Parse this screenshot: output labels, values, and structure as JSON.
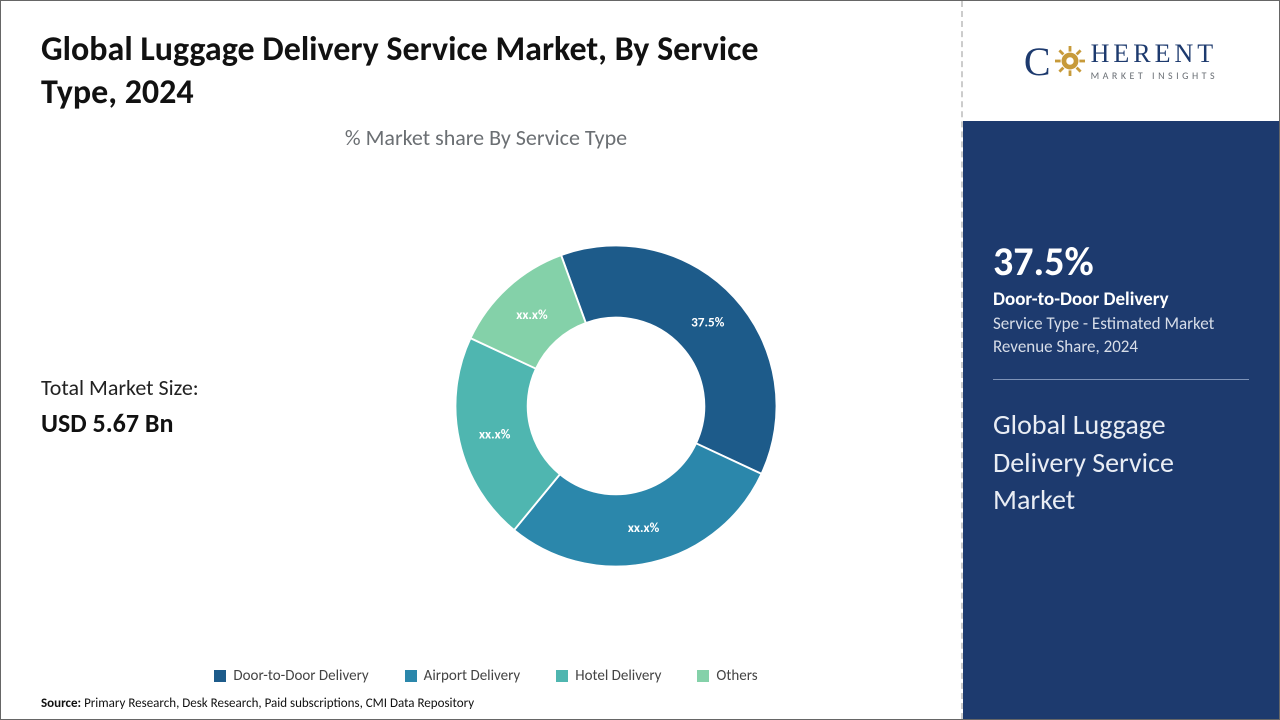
{
  "title": "Global Luggage Delivery Service Market, By Service Type, 2024",
  "subtitle": "% Market share By Service Type",
  "total_market_size": {
    "label": "Total Market Size:",
    "value": "USD 5.67 Bn"
  },
  "chart": {
    "type": "donut",
    "background_color": "#ffffff",
    "inner_radius_ratio": 0.55,
    "outer_radius": 170,
    "stroke_color": "#ffffff",
    "stroke_width": 2,
    "label_fontsize": 14,
    "label_color": "#ffffff",
    "series": [
      {
        "name": "Door-to-Door Delivery",
        "value": 37.5,
        "label": "37.5%",
        "color": "#1d5b8a"
      },
      {
        "name": "Airport Delivery",
        "value": 29.0,
        "label": "xx.x%",
        "color": "#2b87ab"
      },
      {
        "name": "Hotel Delivery",
        "value": 21.0,
        "label": "xx.x%",
        "color": "#4fb6b0"
      },
      {
        "name": "Others",
        "value": 12.5,
        "label": "xx.x%",
        "color": "#84d1a9"
      }
    ],
    "start_angle_deg": -20
  },
  "legend": [
    {
      "label": "Door-to-Door Delivery",
      "color": "#1d5b8a"
    },
    {
      "label": "Airport Delivery",
      "color": "#2b87ab"
    },
    {
      "label": "Hotel Delivery",
      "color": "#4fb6b0"
    },
    {
      "label": "Others",
      "color": "#84d1a9"
    }
  ],
  "source": {
    "prefix": "Source:",
    "text": " Primary Research, Desk Research, Paid subscriptions, CMI Data Repository"
  },
  "logo": {
    "line1": "C   HERENT",
    "line2": "MARKET INSIGHTS",
    "gear_color": "#c79a3a",
    "text_color": "#1d3a6e"
  },
  "callout": {
    "background_color": "#1d3a6e",
    "percent": "37.5%",
    "segment": "Door-to-Door Delivery",
    "description": "Service Type - Estimated Market Revenue Share, 2024",
    "market_title": "Global Luggage Delivery Service Market"
  }
}
